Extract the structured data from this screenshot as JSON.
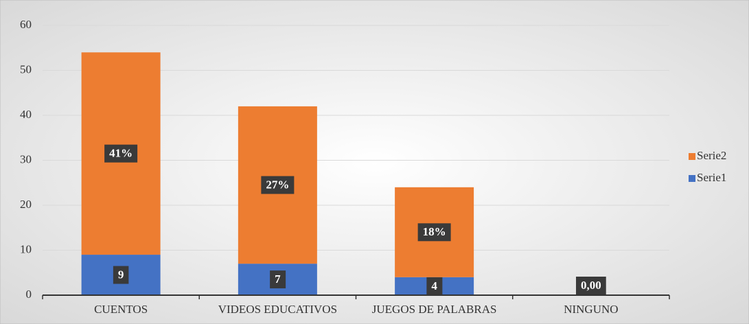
{
  "chart_data": {
    "type": "stacked_bar",
    "categories": [
      "CUENTOS",
      "VIDEOS EDUCATIVOS",
      "JUEGOS DE PALABRAS",
      "NINGUNO"
    ],
    "series": [
      {
        "name": "Serie1",
        "color": "#4472c4",
        "values": [
          9,
          7,
          4,
          0
        ],
        "value_labels": [
          "9",
          "7",
          "4",
          "0,00"
        ]
      },
      {
        "name": "Serie2",
        "color": "#ed7d31",
        "values": [
          45,
          35,
          20,
          0
        ]
      }
    ],
    "annotations": [
      "41%",
      "27%",
      "18%",
      null
    ],
    "ylim": [
      0,
      60
    ],
    "yticks": [
      0,
      10,
      20,
      30,
      40,
      50,
      60
    ],
    "grid": true,
    "legend": "right"
  }
}
